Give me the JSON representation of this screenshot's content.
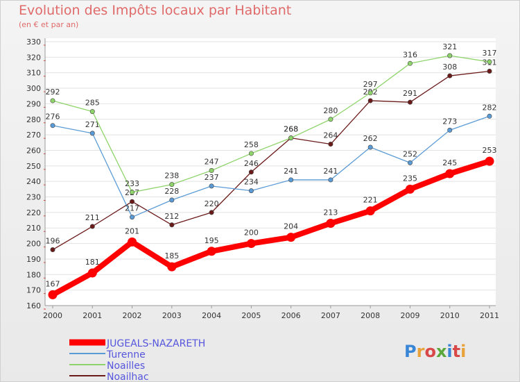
{
  "header": {
    "title": "Evolution des Impôts locaux par Habitant",
    "subtitle": "(en € et par an)"
  },
  "logo": {
    "text": "Proxiti",
    "colors": [
      "#3a86d6",
      "#e8a23a",
      "#d94848",
      "#5aa83a",
      "#3a86d6",
      "#d94848",
      "#e8a23a"
    ]
  },
  "chart_data": {
    "type": "line",
    "title": "Evolution des Impôts locaux par Habitant",
    "subtitle": "(en € et par an)",
    "xlabel": "",
    "ylabel": "",
    "x": [
      "2000",
      "2001",
      "2002",
      "2003",
      "2004",
      "2005",
      "2006",
      "2007",
      "2008",
      "2009",
      "2010",
      "2011"
    ],
    "ylim": [
      160,
      330
    ],
    "yticks": [
      160,
      170,
      180,
      190,
      200,
      210,
      220,
      230,
      240,
      250,
      260,
      270,
      280,
      290,
      300,
      310,
      320,
      330
    ],
    "grid": "horizontal",
    "legend_position": "bottom-left",
    "series": [
      {
        "name": "Noailhac",
        "color": "#6b1a1a",
        "values": [
          196,
          211,
          227,
          212,
          220,
          246,
          268,
          264,
          292,
          291,
          308,
          311
        ]
      },
      {
        "name": "Turenne",
        "color": "#5b9bd5",
        "values": [
          276,
          271,
          217,
          228,
          237,
          234,
          241,
          241,
          262,
          252,
          273,
          282
        ]
      },
      {
        "name": "Noailles",
        "color": "#8fd46b",
        "values": [
          292,
          285,
          233,
          238,
          247,
          258,
          268,
          280,
          297,
          316,
          321,
          317
        ]
      },
      {
        "name": "JUGEALS-NAZARETH",
        "color": "#ff0000",
        "values": [
          167,
          181,
          201,
          185,
          195,
          200,
          204,
          213,
          221,
          235,
          245,
          253
        ]
      }
    ],
    "legend_order": [
      "JUGEALS-NAZARETH",
      "Turenne",
      "Noailles",
      "Noailhac"
    ]
  }
}
